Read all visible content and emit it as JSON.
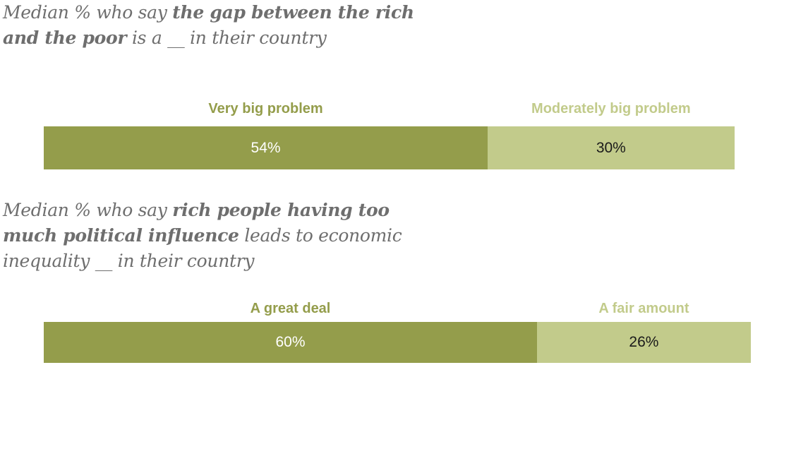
{
  "colors": {
    "dark": "#949d4b",
    "light": "#c2cb8b",
    "title_text": "#6e6e6e",
    "value_on_dark": "#ffffff",
    "value_on_light": "#1a1a1a"
  },
  "chart_data": [
    {
      "type": "bar",
      "orientation": "horizontal-stacked",
      "title_parts": [
        "Median % who say ",
        "the gap between the rich",
        "and the poor",
        " is a __ in their country"
      ],
      "categories": [
        "Very big problem",
        "Moderately big problem"
      ],
      "values": [
        54,
        30
      ],
      "value_labels": [
        "54%",
        "30%"
      ],
      "xlim": [
        0,
        100
      ]
    },
    {
      "type": "bar",
      "orientation": "horizontal-stacked",
      "title_parts": [
        "Median % who say ",
        "rich people having too",
        "much political influence",
        " leads to economic",
        "inequality __ in their country"
      ],
      "categories": [
        "A great deal",
        "A fair amount"
      ],
      "values": [
        60,
        26
      ],
      "value_labels": [
        "60%",
        "26%"
      ],
      "xlim": [
        0,
        100
      ]
    }
  ]
}
